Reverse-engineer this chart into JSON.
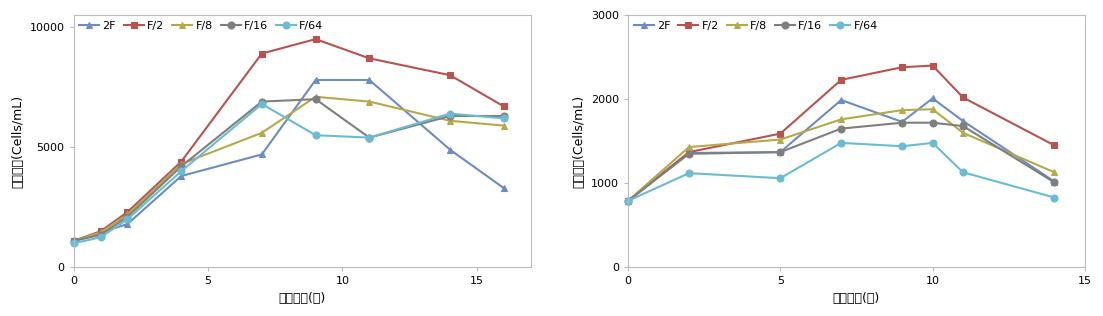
{
  "left": {
    "xlabel": "배양기간(일)",
    "ylabel": "세포밀도(Cells/mL)",
    "ylim": [
      0,
      10500
    ],
    "xlim": [
      0,
      17
    ],
    "yticks": [
      0,
      5000,
      10000
    ],
    "xticks": [
      0,
      5,
      10,
      15
    ],
    "series": {
      "2F": {
        "x": [
          0,
          1,
          2,
          4,
          7,
          9,
          11,
          14,
          16
        ],
        "y": [
          1100,
          1450,
          1800,
          3800,
          4700,
          7800,
          7800,
          4900,
          3300
        ],
        "color": "#6b8dc4",
        "marker": "^"
      },
      "F/2": {
        "x": [
          0,
          1,
          2,
          4,
          7,
          9,
          11,
          14,
          16
        ],
        "y": [
          1100,
          1500,
          2300,
          4400,
          8900,
          9500,
          8700,
          8000,
          6700
        ],
        "color": "#b85450",
        "marker": "s"
      },
      "F/8": {
        "x": [
          0,
          1,
          2,
          4,
          7,
          9,
          11,
          14,
          16
        ],
        "y": [
          1100,
          1450,
          2200,
          4300,
          5600,
          7100,
          6900,
          6100,
          5900
        ],
        "color": "#b5aa4a",
        "marker": "^"
      },
      "F/16": {
        "x": [
          0,
          1,
          2,
          4,
          7,
          9,
          11,
          14,
          16
        ],
        "y": [
          1100,
          1350,
          2100,
          4200,
          6900,
          7000,
          5400,
          6300,
          6300
        ],
        "color": "#7f7f7f",
        "marker": ""
      },
      "F/64": {
        "x": [
          0,
          1,
          2,
          4,
          7,
          9,
          11,
          14,
          16
        ],
        "y": [
          1000,
          1250,
          2000,
          4000,
          6800,
          5500,
          5400,
          6400,
          6200
        ],
        "color": "#6abbd4",
        "marker": ""
      }
    }
  },
  "right": {
    "xlabel": "배양기간(일)",
    "ylabel": "세포밀도(Cells/mL)",
    "ylim": [
      0,
      3000
    ],
    "xlim": [
      0,
      15
    ],
    "yticks": [
      0,
      1000,
      2000,
      3000
    ],
    "xticks": [
      0,
      5,
      10,
      15
    ],
    "series": {
      "2F": {
        "x": [
          0,
          2,
          5,
          7,
          9,
          10,
          11,
          14
        ],
        "y": [
          790,
          1360,
          1370,
          1990,
          1730,
          2010,
          1740,
          1020
        ],
        "color": "#6b8dc4",
        "marker": "^"
      },
      "F/2": {
        "x": [
          0,
          2,
          5,
          7,
          9,
          10,
          11,
          14
        ],
        "y": [
          790,
          1370,
          1590,
          2230,
          2380,
          2400,
          2020,
          1450
        ],
        "color": "#b85450",
        "marker": "s"
      },
      "F/8": {
        "x": [
          0,
          2,
          5,
          7,
          9,
          10,
          11,
          14
        ],
        "y": [
          790,
          1430,
          1520,
          1760,
          1870,
          1880,
          1600,
          1130
        ],
        "color": "#b5aa4a",
        "marker": "^"
      },
      "F/16": {
        "x": [
          0,
          2,
          5,
          7,
          9,
          10,
          11,
          14
        ],
        "y": [
          790,
          1350,
          1370,
          1650,
          1720,
          1720,
          1680,
          1010
        ],
        "color": "#7f7f7f",
        "marker": ""
      },
      "F/64": {
        "x": [
          0,
          2,
          5,
          7,
          9,
          10,
          11,
          14
        ],
        "y": [
          790,
          1120,
          1060,
          1480,
          1440,
          1480,
          1130,
          830
        ],
        "color": "#6abbd4",
        "marker": ""
      }
    }
  },
  "legend_labels": [
    "2F",
    "F/2",
    "F/8",
    "F/16",
    "F/64"
  ],
  "line_width": 1.5,
  "marker_size": 5,
  "font_size_label": 9,
  "font_size_tick": 8,
  "font_size_legend": 8,
  "bg_color": "#ffffff"
}
